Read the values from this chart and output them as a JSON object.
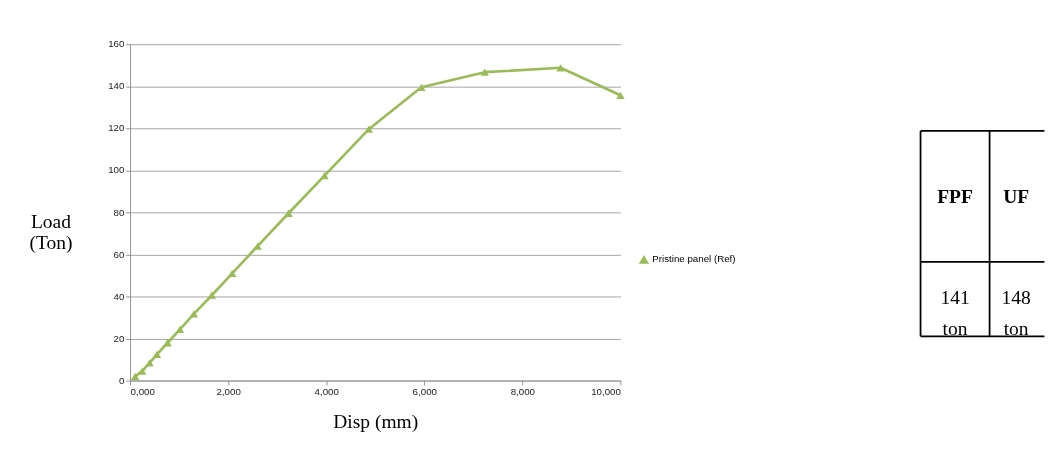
{
  "chart_data": {
    "type": "line",
    "xlabel": "Disp (mm)",
    "ylabel": "Load (Ton)",
    "series": [
      {
        "name": "Pristine panel (Ref)",
        "color": "#9bbb59",
        "x": [
          103,
          247,
          397,
          548,
          764,
          1017,
          1300,
          1667,
          2082,
          2600,
          3231,
          3965,
          4868,
          5939,
          7232,
          8778,
          10000
        ],
        "values": [
          2,
          4.5,
          8.4,
          12.5,
          18,
          24.4,
          31.7,
          40.6,
          51,
          64,
          79.6,
          97.5,
          119.6,
          139.5,
          146.7,
          148.8,
          135.7
        ]
      }
    ],
    "xlim": [
      0,
      10000
    ],
    "xticks": [
      {
        "value": 0,
        "label": "0,000"
      },
      {
        "value": 2000,
        "label": "2,000"
      },
      {
        "value": 4000,
        "label": "4,000"
      },
      {
        "value": 6000,
        "label": "6,000"
      },
      {
        "value": 8000,
        "label": "8,000"
      },
      {
        "value": 10000,
        "label": "10,000"
      }
    ],
    "ylim": [
      0,
      160
    ],
    "yticks": [
      0,
      20,
      40,
      60,
      80,
      100,
      120,
      140,
      160
    ],
    "grid": "y",
    "legend": "right",
    "marker": "triangle",
    "line_style": "solid",
    "annotations": [
      "FPF",
      "UF",
      "141 ton",
      "148 ton"
    ]
  }
}
